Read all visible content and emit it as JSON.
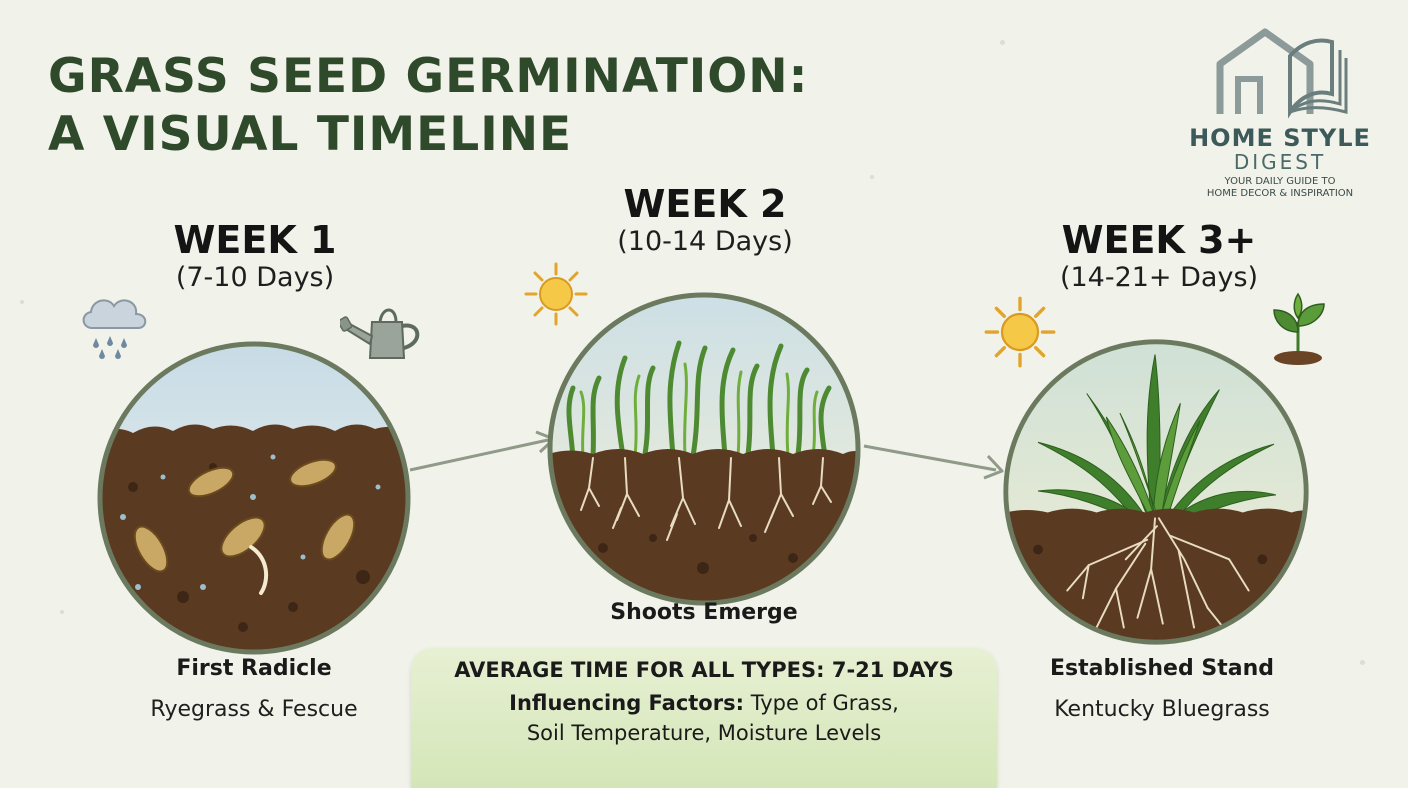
{
  "title": {
    "line1": "GRASS SEED GERMINATION:",
    "line2": "A VISUAL TIMELINE"
  },
  "logo": {
    "name_line1": "HOME STYLE",
    "name_line2": "DIGEST",
    "tagline_line1": "YOUR DAILY GUIDE TO",
    "tagline_line2": "HOME DECOR & INSPIRATION"
  },
  "stages": [
    {
      "week": "WEEK 1",
      "days": "(7-10 Days)",
      "label": "First Radicle",
      "grass": "Ryegrass & Fescue",
      "icons": [
        "rain-cloud-icon",
        "watering-can-icon"
      ]
    },
    {
      "week": "WEEK 2",
      "days": "(10-14 Days)",
      "label": "Shoots Emerge",
      "icons": [
        "sun-icon"
      ]
    },
    {
      "week": "WEEK 3+",
      "days": "(14-21+ Days)",
      "label": "Established Stand",
      "grass": "Kentucky Bluegrass",
      "icons": [
        "sun-icon",
        "sprout-icon"
      ]
    }
  ],
  "summary": {
    "heading": "AVERAGE TIME FOR ALL TYPES: 7-21 DAYS",
    "factors_label": "Influencing Factors:",
    "factors_line1": "Type of Grass,",
    "factors_line2": "Soil Temperature, Moisture Levels"
  },
  "colors": {
    "title": "#2e4a2b",
    "soil": "#5b3a22",
    "grass": "#4d8a32",
    "circle_border": "#6b7a5e",
    "summary_box": "#d4e6b8"
  }
}
